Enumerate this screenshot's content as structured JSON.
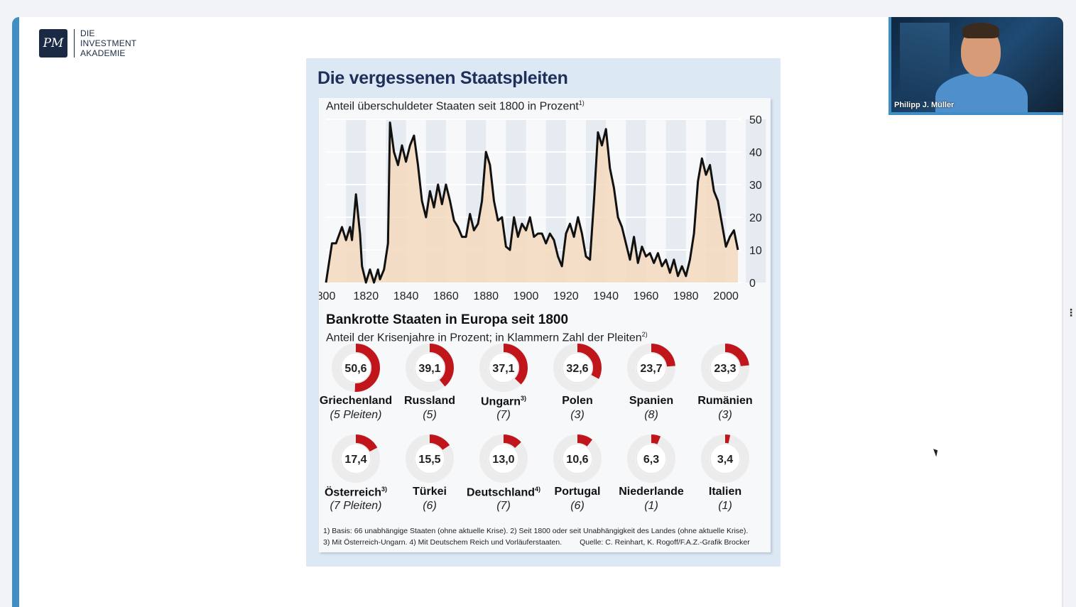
{
  "brand": {
    "logo_monogram": "PM",
    "lines": [
      "DIE",
      "INVESTMENT",
      "AKADEMIE"
    ]
  },
  "video": {
    "participant_name": "Philipp J. Müller"
  },
  "chart_data": [
    {
      "type": "line",
      "title": "Die vergessenen Staatspleiten",
      "subtitle": "Anteil überschuldeter Staaten seit 1800 in Prozent",
      "subtitle_note": "1)",
      "x": [
        1800,
        1803,
        1805,
        1808,
        1810,
        1812,
        1813,
        1815,
        1817,
        1818,
        1820,
        1822,
        1824,
        1826,
        1827,
        1829,
        1831,
        1832,
        1834,
        1836,
        1838,
        1840,
        1842,
        1844,
        1846,
        1848,
        1850,
        1852,
        1854,
        1856,
        1858,
        1860,
        1862,
        1864,
        1866,
        1868,
        1870,
        1872,
        1874,
        1876,
        1878,
        1880,
        1882,
        1884,
        1886,
        1888,
        1890,
        1892,
        1894,
        1896,
        1898,
        1900,
        1902,
        1904,
        1906,
        1908,
        1910,
        1912,
        1914,
        1916,
        1918,
        1920,
        1922,
        1924,
        1926,
        1928,
        1930,
        1932,
        1934,
        1936,
        1938,
        1940,
        1942,
        1944,
        1946,
        1948,
        1950,
        1952,
        1954,
        1956,
        1958,
        1960,
        1962,
        1964,
        1966,
        1968,
        1970,
        1972,
        1974,
        1976,
        1978,
        1980,
        1982,
        1984,
        1986,
        1988,
        1990,
        1992,
        1994,
        1996,
        1998,
        2000,
        2002,
        2004,
        2006
      ],
      "series": [
        {
          "values": [
            0,
            12,
            12,
            17,
            13,
            17,
            13,
            27,
            15,
            5,
            0,
            4,
            0,
            4,
            1,
            4,
            12,
            49,
            40,
            36,
            42,
            37,
            42,
            45,
            36,
            25,
            20,
            28,
            23,
            30,
            24,
            30,
            25,
            19,
            17,
            14,
            14,
            21,
            16,
            18,
            25,
            40,
            36,
            25,
            19,
            20,
            11,
            10,
            20,
            14,
            18,
            16,
            20,
            14,
            15,
            15,
            12,
            15,
            13,
            8,
            5,
            15,
            18,
            14,
            20,
            15,
            8,
            7,
            25,
            46,
            42,
            47,
            35,
            29,
            20,
            17,
            12,
            7,
            14,
            6,
            11,
            8,
            9,
            6,
            9,
            5,
            7,
            3,
            7,
            2,
            5,
            2,
            7,
            15,
            31,
            38,
            33,
            36,
            28,
            25,
            18,
            11,
            14,
            16,
            10
          ]
        }
      ],
      "xlim": [
        1800,
        2006
      ],
      "ylim": [
        0,
        50
      ],
      "x_ticks": [
        "800",
        "1820",
        "1840",
        "1860",
        "1880",
        "1900",
        "1920",
        "1940",
        "1960",
        "1980",
        "2000"
      ],
      "y_ticks": [
        "50",
        "40",
        "30",
        "20",
        "10",
        "0"
      ],
      "grid": true,
      "color": "#111111",
      "fill": "#f3d9bd"
    },
    {
      "type": "pie",
      "title": "Bankrotte Staaten in Europa seit 1800",
      "subtitle": "Anteil der Krisenjahre in Prozent; in Klammern Zahl der Pleiten",
      "subtitle_note": "2)",
      "color": "#c0151a",
      "items": [
        {
          "country": "Griechenland",
          "note": "",
          "value": 50.6,
          "value_label": "50,6",
          "count_label": "(5 Pleiten)"
        },
        {
          "country": "Russland",
          "note": "",
          "value": 39.1,
          "value_label": "39,1",
          "count_label": "(5)"
        },
        {
          "country": "Ungarn",
          "note": "3)",
          "value": 37.1,
          "value_label": "37,1",
          "count_label": "(7)"
        },
        {
          "country": "Polen",
          "note": "",
          "value": 32.6,
          "value_label": "32,6",
          "count_label": "(3)"
        },
        {
          "country": "Spanien",
          "note": "",
          "value": 23.7,
          "value_label": "23,7",
          "count_label": "(8)"
        },
        {
          "country": "Rumänien",
          "note": "",
          "value": 23.3,
          "value_label": "23,3",
          "count_label": "(3)"
        },
        {
          "country": "Österreich",
          "note": "3)",
          "value": 17.4,
          "value_label": "17,4",
          "count_label": "(7 Pleiten)"
        },
        {
          "country": "Türkei",
          "note": "",
          "value": 15.5,
          "value_label": "15,5",
          "count_label": "(6)"
        },
        {
          "country": "Deutschland",
          "note": "4)",
          "value": 13.0,
          "value_label": "13,0",
          "count_label": "(7)"
        },
        {
          "country": "Portugal",
          "note": "",
          "value": 10.6,
          "value_label": "10,6",
          "count_label": "(6)"
        },
        {
          "country": "Niederlande",
          "note": "",
          "value": 6.3,
          "value_label": "6,3",
          "count_label": "(1)"
        },
        {
          "country": "Italien",
          "note": "",
          "value": 3.4,
          "value_label": "3,4",
          "count_label": "(1)"
        }
      ]
    }
  ],
  "footnotes": {
    "line1": "1) Basis: 66 unabhängige Staaten (ohne aktuelle Krise). 2) Seit 1800 oder seit Unabhängigkeit des Landes (ohne aktuelle Krise).",
    "line2": "3) Mit Österreich-Ungarn. 4) Mit Deutschem Reich und Vorläuferstaaten.",
    "source": "Quelle: C. Reinhart, K. Rogoff/F.A.Z.-Grafik Brocker"
  }
}
